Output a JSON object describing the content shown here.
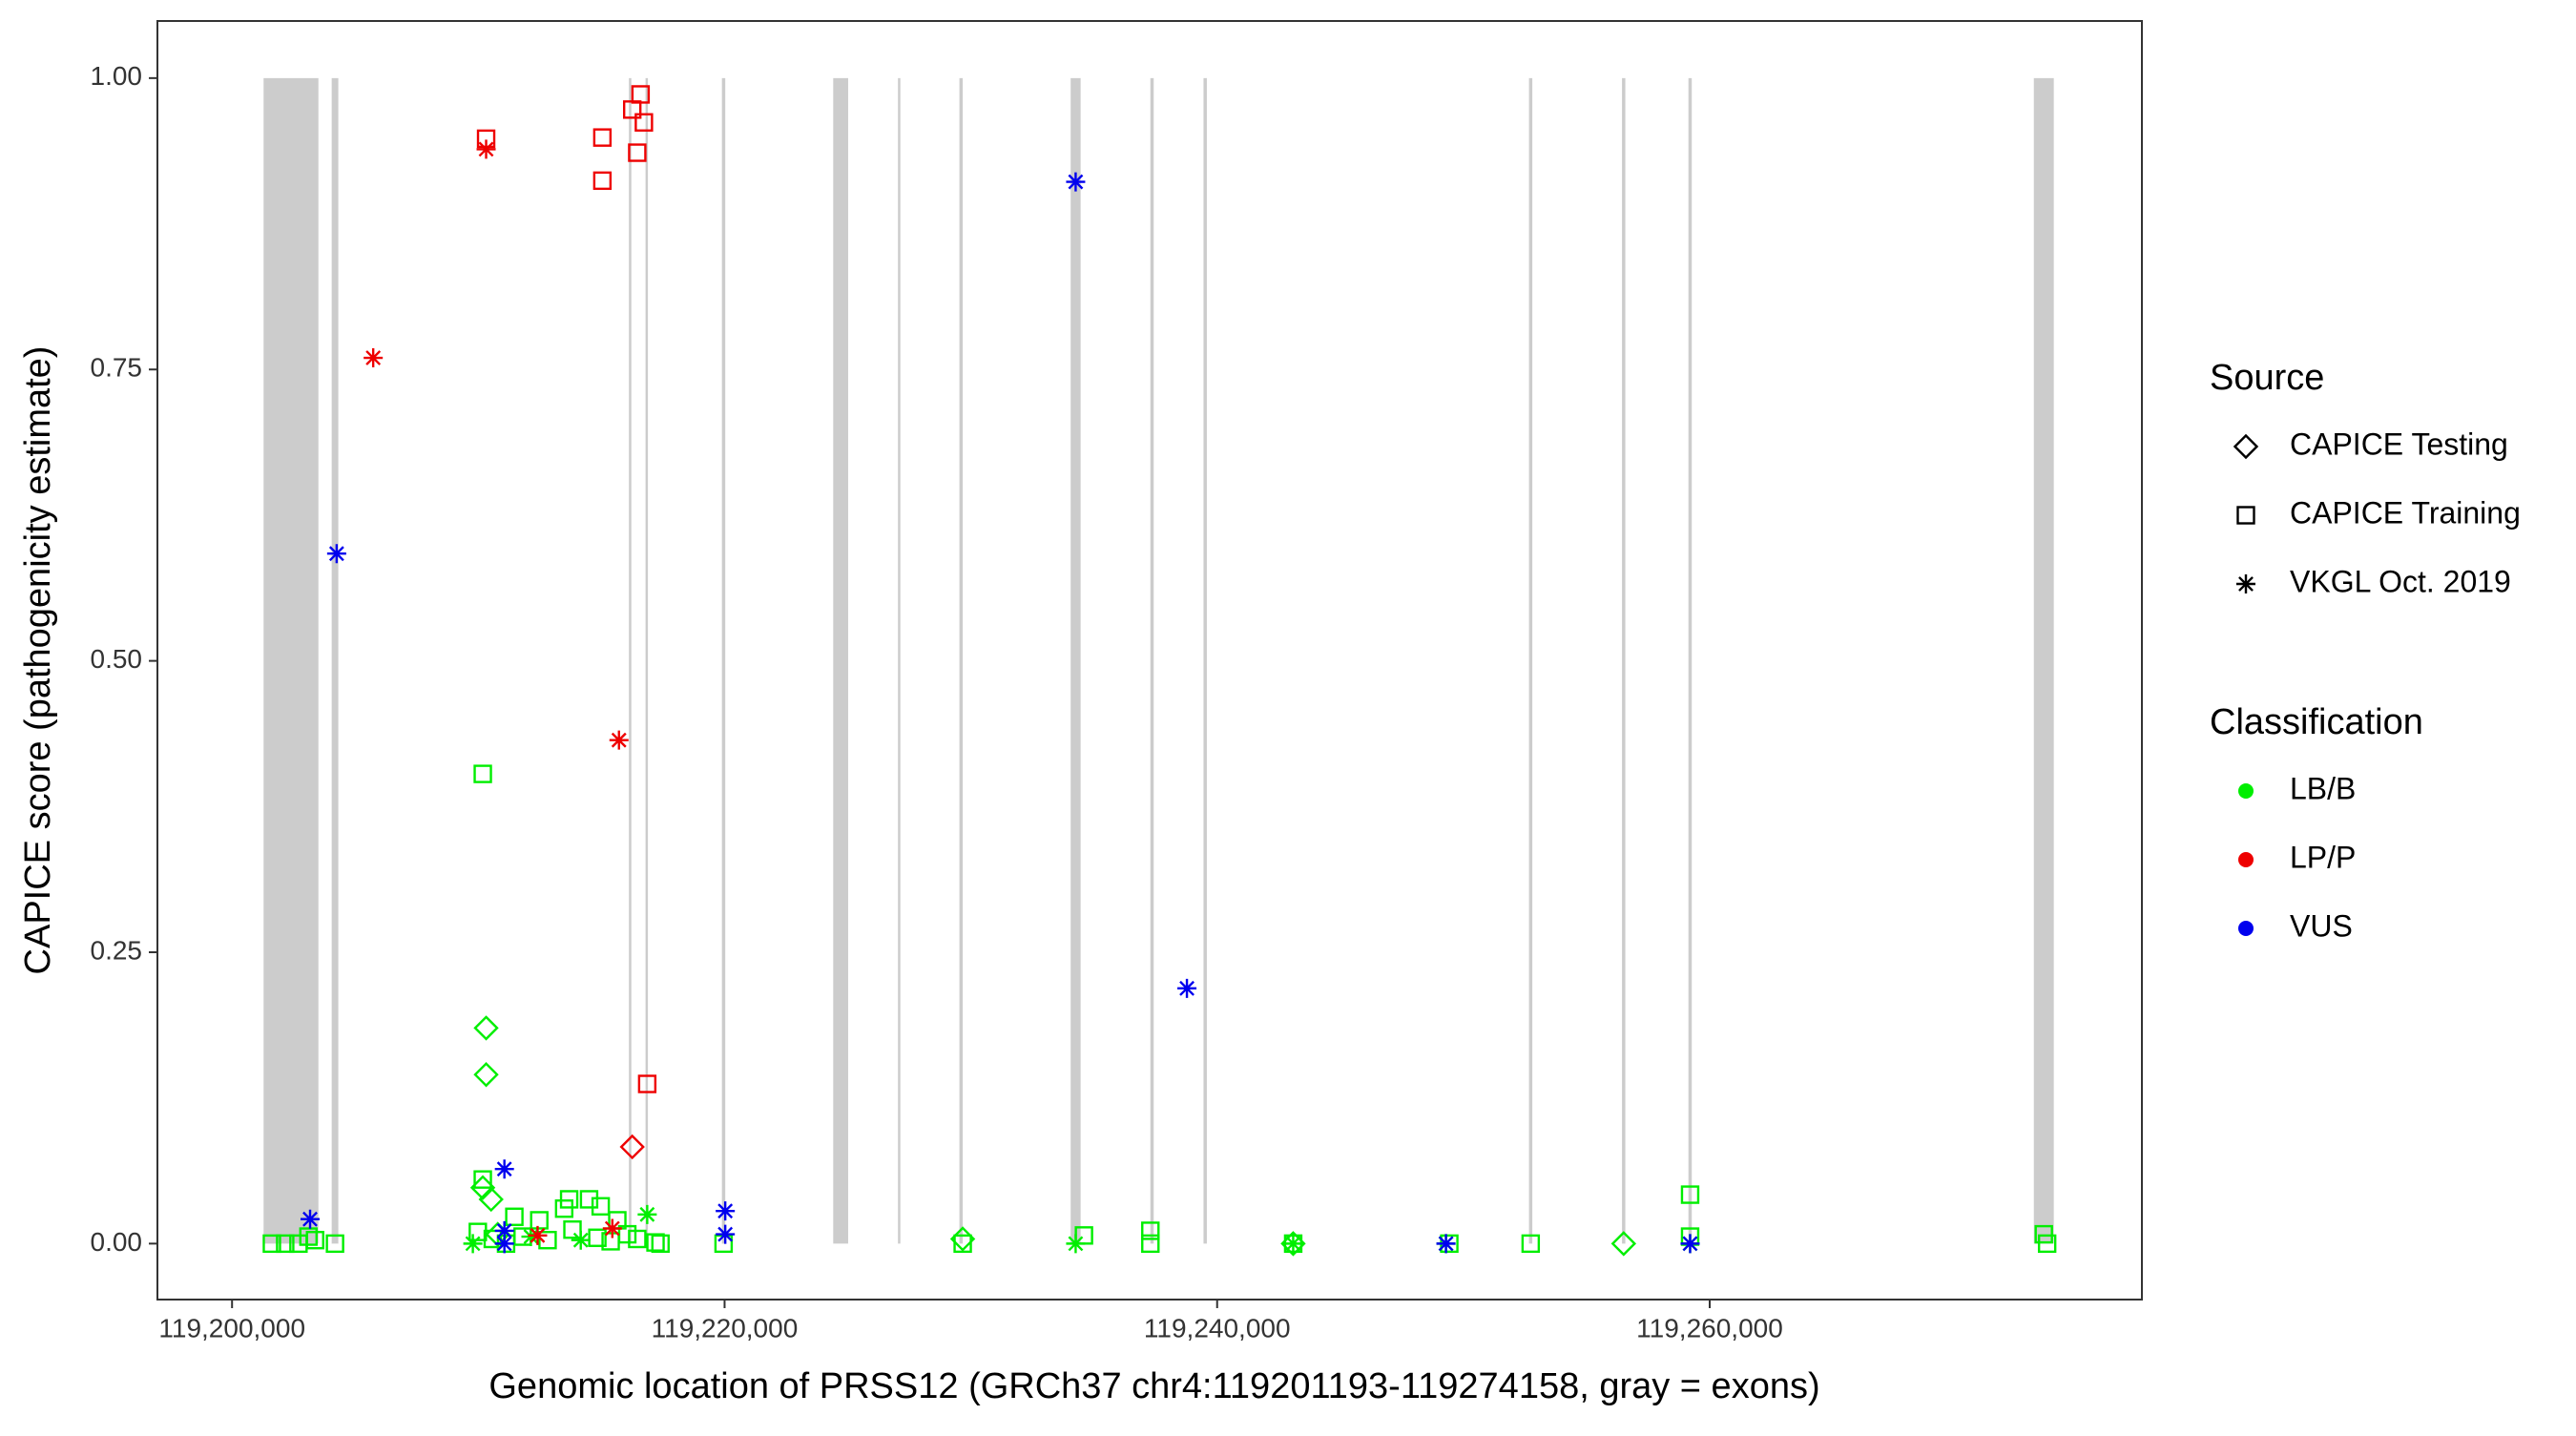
{
  "chart_data": {
    "type": "scatter",
    "x_label": "Genomic location of PRSS12 (GRCh37 chr4:119201193-119274158, gray = exons)",
    "y_label": "CAPICE score (pathogenicity estimate)",
    "xlim": [
      119196970,
      119277550
    ],
    "ylim": [
      -0.048,
      1.049
    ],
    "xticks": [
      {
        "value": 119200000,
        "label": "119,200,000"
      },
      {
        "value": 119220000,
        "label": "119,220,000"
      },
      {
        "value": 119240000,
        "label": "119,240,000"
      },
      {
        "value": 119260000,
        "label": "119,260,000"
      }
    ],
    "yticks": [
      {
        "value": 0,
        "label": "0.00"
      },
      {
        "value": 0.25,
        "label": "0.25"
      },
      {
        "value": 0.5,
        "label": "0.50"
      },
      {
        "value": 0.75,
        "label": "0.75"
      },
      {
        "value": 1,
        "label": "1.00"
      }
    ],
    "exon_color": "#cccccc",
    "exons": [
      [
        119201281,
        119203506
      ],
      [
        119204046,
        119204316
      ],
      [
        119216116,
        119216183
      ],
      [
        119216790,
        119216858
      ],
      [
        119219892,
        119220027
      ],
      [
        119224410,
        119225017
      ],
      [
        119227040,
        119227107
      ],
      [
        119229535,
        119229670
      ],
      [
        119234052,
        119234457
      ],
      [
        119237289,
        119237424
      ],
      [
        119239447,
        119239582
      ],
      [
        119252663,
        119252798
      ],
      [
        119256440,
        119256575
      ],
      [
        119259137,
        119259272
      ],
      [
        119273163,
        119273972
      ]
    ],
    "legends": [
      {
        "title": "Source",
        "entries": [
          {
            "label": "CAPICE Testing",
            "shape": "diamond"
          },
          {
            "label": "CAPICE Training",
            "shape": "square"
          },
          {
            "label": "VKGL Oct. 2019",
            "shape": "star"
          }
        ]
      },
      {
        "title": "Classification",
        "entries": [
          {
            "label": "LB/B",
            "color": "#00ee00"
          },
          {
            "label": "LP/P",
            "color": "#ee0000"
          },
          {
            "label": "VUS",
            "color": "#0000ee"
          }
        ]
      }
    ],
    "series": [
      {
        "shape": "square",
        "color": "#00ee00",
        "x": [
          119201618,
          119202158,
          119202697,
          119203102,
          119203372,
          119204181,
          119210182,
          119210182,
          119209980,
          119210587,
          119211126,
          119211463,
          119211800,
          119212475,
          119212812,
          119213486,
          119213688,
          119213823,
          119214497,
          119214834,
          119214969,
          119215374,
          119215644,
          119216049,
          119216453,
          119217195,
          119217397,
          119219959,
          119229669,
          119234592,
          119237289,
          119237289,
          119243088,
          119249427,
          119252731,
          119259205,
          119259205,
          119273567,
          119273702
        ],
        "values": [
          0,
          0,
          0,
          0.006,
          0.003,
          0,
          0.403,
          0.055,
          0.01,
          0.004,
          0,
          0.023,
          0.006,
          0.02,
          0.003,
          0.03,
          0.038,
          0.012,
          0.038,
          0.005,
          0.032,
          0.002,
          0.02,
          0.008,
          0.004,
          0.001,
          0,
          0,
          0,
          0.007,
          0.011,
          0,
          0,
          0,
          0,
          0.042,
          0.006,
          0.008,
          0
        ]
      },
      {
        "shape": "diamond",
        "color": "#00ee00",
        "x": [
          119210317,
          119210317,
          119210519,
          119210182,
          119210789,
          119229669,
          119243088,
          119256507
        ],
        "values": [
          0.185,
          0.145,
          0.038,
          0.048,
          0.008,
          0.004,
          0,
          0
        ]
      },
      {
        "shape": "star",
        "color": "#00ee00",
        "x": [
          119209778,
          119212137,
          119214160,
          119216858,
          119234255,
          119243088,
          119249292,
          119259205
        ],
        "values": [
          0,
          0.006,
          0.003,
          0.025,
          0,
          0,
          0,
          0
        ]
      },
      {
        "shape": "square",
        "color": "#ee0000",
        "x": [
          119210317,
          119215037,
          119215037,
          119216251,
          119216588,
          119216723,
          119216453,
          119216858
        ],
        "values": [
          0.948,
          0.949,
          0.912,
          0.973,
          0.986,
          0.962,
          0.936,
          0.137
        ]
      },
      {
        "shape": "star",
        "color": "#ee0000",
        "x": [
          119210317,
          119205732,
          119215711,
          119212407,
          119215442
        ],
        "values": [
          0.939,
          0.76,
          0.432,
          0.007,
          0.013
        ]
      },
      {
        "shape": "diamond",
        "color": "#ee0000",
        "x": [
          119216251
        ],
        "values": [
          0.083
        ]
      },
      {
        "shape": "star",
        "color": "#0000ee",
        "x": [
          119203169,
          119204248,
          119211059,
          119211059,
          119211059,
          119220027,
          119220027,
          119234255,
          119238773,
          119249292,
          119259205
        ],
        "values": [
          0.021,
          0.592,
          0.064,
          0.011,
          0,
          0.028,
          0.008,
          0.911,
          0.219,
          0,
          0
        ]
      }
    ]
  }
}
